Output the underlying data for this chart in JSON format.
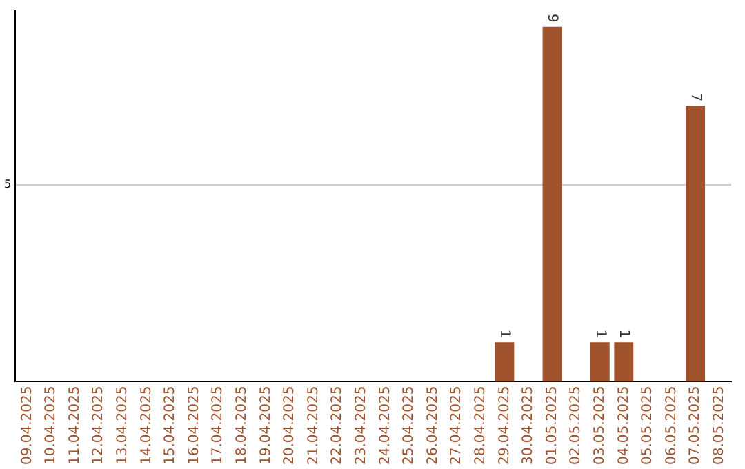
{
  "chart_data": {
    "type": "bar",
    "categories": [
      "09.04.2025",
      "10.04.2025",
      "11.04.2025",
      "12.04.2025",
      "13.04.2025",
      "14.04.2025",
      "15.04.2025",
      "16.04.2025",
      "17.04.2025",
      "18.04.2025",
      "19.04.2025",
      "20.04.2025",
      "21.04.2025",
      "22.04.2025",
      "23.04.2025",
      "24.04.2025",
      "25.04.2025",
      "26.04.2025",
      "27.04.2025",
      "28.04.2025",
      "29.04.2025",
      "30.04.2025",
      "01.05.2025",
      "02.05.2025",
      "03.05.2025",
      "04.05.2025",
      "05.05.2025",
      "06.05.2025",
      "07.05.2025",
      "08.05.2025"
    ],
    "values": [
      null,
      null,
      null,
      null,
      null,
      null,
      null,
      null,
      null,
      null,
      null,
      null,
      null,
      null,
      null,
      null,
      null,
      null,
      null,
      null,
      1,
      null,
      9,
      null,
      1,
      1,
      null,
      null,
      7,
      null
    ],
    "color": "#a0522d",
    "ylim": [
      0,
      9.4
    ],
    "yticks": [
      5
    ],
    "grid": "y",
    "legend": false,
    "data_labels": true
  }
}
